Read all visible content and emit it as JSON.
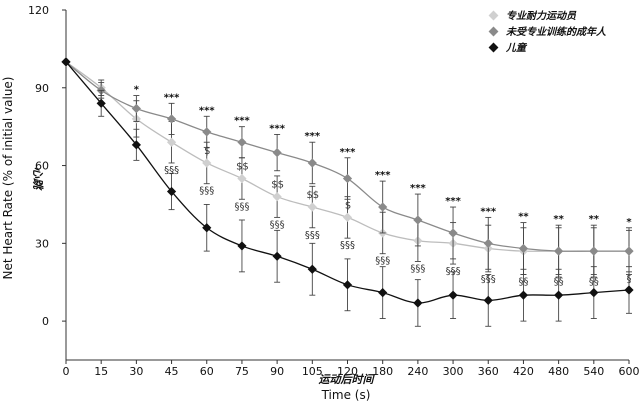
{
  "chart_data": {
    "type": "line",
    "xlabel": "Time (s)",
    "xlabel_cn": "运动后时间",
    "ylabel": "Net Heart Rate  (% of initial value)",
    "ylabel_cn": "心跳",
    "x_ticks": [
      "0",
      "15",
      "30",
      "45",
      "60",
      "75",
      "90",
      "105",
      "120",
      "180",
      "240",
      "300",
      "360",
      "420",
      "480",
      "540",
      "600"
    ],
    "y_ticks": [
      "0",
      "30",
      "60",
      "90",
      "120"
    ],
    "ylim": [
      -15,
      120
    ],
    "legend_position": "top-right",
    "series": [
      {
        "name": "专业耐力运动员",
        "color": "#d0d0d0",
        "values": [
          100,
          90,
          78,
          69,
          61,
          55,
          48,
          44,
          40,
          34,
          31,
          30,
          28,
          27,
          27,
          27,
          27
        ],
        "errors": [
          0,
          3,
          7,
          8,
          8,
          8,
          8,
          8,
          8,
          8,
          8,
          8,
          9,
          9,
          9,
          9,
          8
        ]
      },
      {
        "name": "未受专业训练的成年人",
        "color": "#8a8a8a",
        "values": [
          100,
          89,
          82,
          78,
          73,
          69,
          65,
          61,
          55,
          44,
          39,
          34,
          30,
          28,
          27,
          27,
          27
        ],
        "errors": [
          0,
          3,
          5,
          6,
          6,
          6,
          7,
          8,
          8,
          10,
          10,
          10,
          10,
          10,
          10,
          10,
          9
        ]
      },
      {
        "name": "儿童",
        "color": "#111111",
        "values": [
          100,
          84,
          68,
          50,
          36,
          29,
          25,
          20,
          14,
          11,
          7,
          10,
          8,
          10,
          10,
          11,
          12
        ],
        "errors": [
          0,
          5,
          6,
          7,
          9,
          10,
          10,
          10,
          10,
          10,
          9,
          9,
          10,
          10,
          10,
          10,
          9
        ]
      }
    ],
    "significance_top": [
      "",
      "",
      "*",
      "***",
      "***",
      "***",
      "***",
      "***",
      "***",
      "***",
      "***",
      "***",
      "***",
      "**",
      "**",
      "**",
      "*"
    ],
    "significance_mid": [
      "",
      "",
      "",
      "",
      "$",
      "$$",
      "$$",
      "$$",
      "$",
      "",
      "",
      "",
      "",
      "",
      "",
      "",
      ""
    ],
    "significance_low": [
      "",
      "",
      "",
      "§§§",
      "§§§",
      "§§§",
      "§§§",
      "§§§",
      "§§§",
      "§§§",
      "§§§",
      "§§§",
      "§§§",
      "§§",
      "§§",
      "§§",
      "§"
    ]
  }
}
